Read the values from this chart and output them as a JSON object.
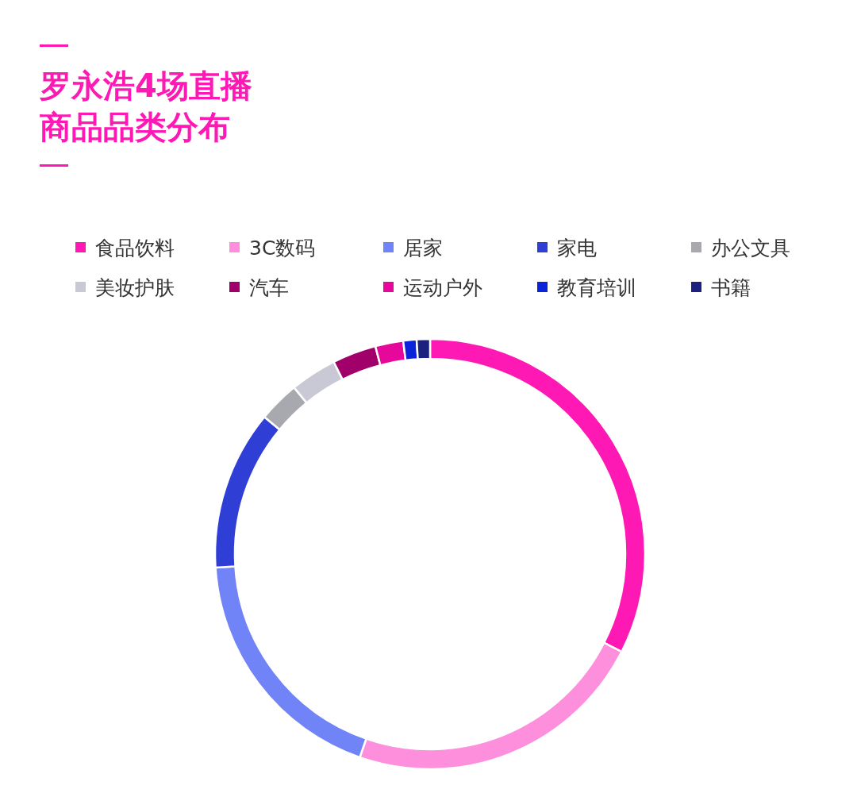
{
  "chart_data": {
    "type": "donut",
    "title": "罗永浩4场直播商品品类分布",
    "legend": "top",
    "categories": [
      "食品饮料",
      "3C数码",
      "居家",
      "家电",
      "办公文具",
      "美妆护肤",
      "汽车",
      "运动户外",
      "教育培训",
      "书籍"
    ],
    "values": [
      32.5,
      22.8,
      18.7,
      12.0,
      3.1,
      3.5,
      3.3,
      2.1,
      1.0,
      1.0
    ],
    "colors": [
      "#fe19b4",
      "#fd8fdc",
      "#7084f8",
      "#2f3fd6",
      "#a8a9ae",
      "#c9c9d6",
      "#a1006b",
      "#e5089a",
      "#0a25d9",
      "#1c2180"
    ]
  }
}
